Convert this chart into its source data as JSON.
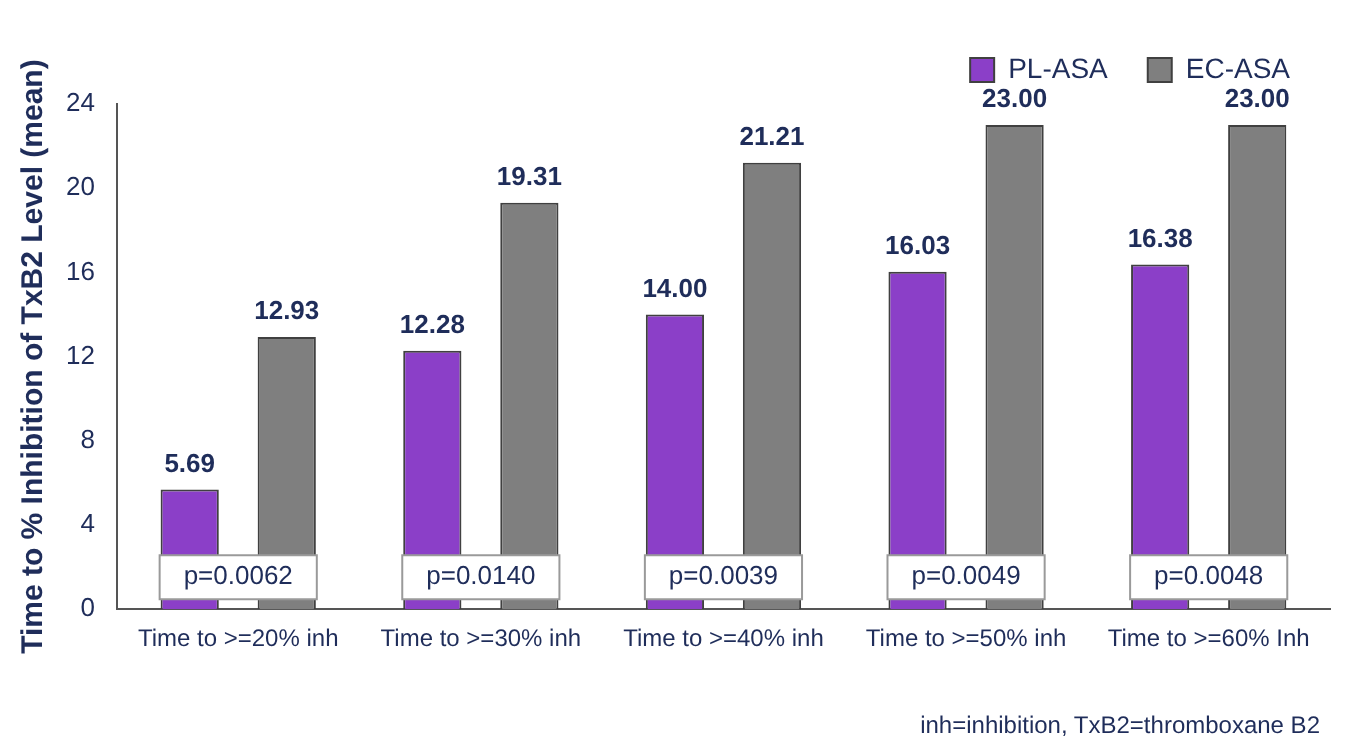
{
  "chart_data": {
    "type": "bar",
    "ylabel": "Time to % Inhibition of TxB2 Level (mean)",
    "categories": [
      "Time to >=20% inh",
      "Time to >=30% inh",
      "Time to >=40% inh",
      "Time to >=50% inh",
      "Time to >=60% Inh"
    ],
    "series": [
      {
        "name": "PL-ASA",
        "color": "#8b3fc8",
        "values": [
          5.69,
          12.28,
          14.0,
          16.03,
          16.38
        ]
      },
      {
        "name": "EC-ASA",
        "color": "#7f7f7f",
        "values": [
          12.93,
          19.31,
          21.21,
          23.0,
          23.0
        ]
      }
    ],
    "value_labels": [
      [
        "5.69",
        "12.28",
        "14.00",
        "16.03",
        "16.38"
      ],
      [
        "12.93",
        "19.31",
        "21.21",
        "23.00",
        "23.00"
      ]
    ],
    "ylim": [
      0,
      24
    ],
    "yticks": [
      0,
      4,
      8,
      12,
      16,
      20,
      24
    ],
    "grid": false,
    "legend": "top right",
    "annotations": [
      "p=0.0062",
      "p=0.0140",
      "p=0.0039",
      "p=0.0049",
      "p=0.0048",
      "inh=inhibition, TxB2=thromboxane B2"
    ]
  }
}
